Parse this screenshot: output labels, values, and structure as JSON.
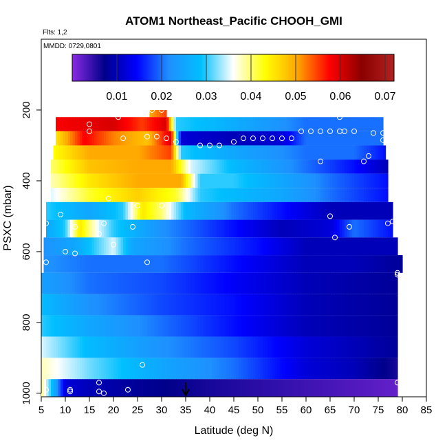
{
  "chart_data": {
    "type": "heatmap",
    "title": "ATOM1 Northeast_Pacific CHOOH_GMI",
    "subtitle_flights": "Flts: 1,2",
    "subtitle_dates": "MMDD: 0729,0801",
    "xlabel": "Latitude (deg N)",
    "ylabel": "PSXC (mbar)",
    "xlim": [
      5,
      85
    ],
    "ylim": [
      1010,
      0
    ],
    "x_ticks": [
      "5",
      "10",
      "15",
      "20",
      "25",
      "30",
      "35",
      "40",
      "45",
      "50",
      "55",
      "60",
      "65",
      "70",
      "75",
      "80",
      "85"
    ],
    "y_ticks": [
      "200",
      "400",
      "600",
      "800",
      "1000"
    ],
    "colorbar": {
      "range": [
        0.0,
        0.072
      ],
      "ticks": [
        "0.01",
        "0.02",
        "0.03",
        "0.04",
        "0.05",
        "0.06",
        "0.07"
      ],
      "tick_values": [
        0.01,
        0.02,
        0.03,
        0.04,
        0.05,
        0.06,
        0.07
      ],
      "colors": [
        "#8a2be2",
        "#00008b",
        "#0000ff",
        "#1e90ff",
        "#00bfff",
        "#ffffff",
        "#ffff00",
        "#ffa500",
        "#ff0000",
        "#8b0000",
        "#b22222"
      ]
    },
    "bands": [
      {
        "p_top": 200,
        "p_bottom": 220,
        "x_start": 27.5,
        "x_end": 31.0,
        "anchors": [
          [
            27.5,
            0.05
          ],
          [
            31.0,
            0.055
          ]
        ]
      },
      {
        "p_top": 220,
        "p_bottom": 260,
        "x_start": 8.0,
        "x_end": 76.0,
        "anchors": [
          [
            8.0,
            0.058
          ],
          [
            20.0,
            0.06
          ],
          [
            26.0,
            0.055
          ],
          [
            31.0,
            0.06
          ],
          [
            33.0,
            0.03
          ],
          [
            40.0,
            0.028
          ],
          [
            50.0,
            0.024
          ],
          [
            60.0,
            0.02
          ],
          [
            70.0,
            0.02
          ],
          [
            76.0,
            0.02
          ]
        ]
      },
      {
        "p_top": 260,
        "p_bottom": 300,
        "x_start": 8.0,
        "x_end": 76.0,
        "anchors": [
          [
            8.0,
            0.045
          ],
          [
            14.0,
            0.058
          ],
          [
            20.0,
            0.052
          ],
          [
            27.0,
            0.048
          ],
          [
            32.0,
            0.06
          ],
          [
            34.0,
            0.012
          ],
          [
            45.0,
            0.01
          ],
          [
            55.0,
            0.012
          ],
          [
            60.0,
            0.02
          ],
          [
            70.0,
            0.02
          ],
          [
            76.0,
            0.02
          ]
        ]
      },
      {
        "p_top": 300,
        "p_bottom": 340,
        "x_start": 7.5,
        "x_end": 76.5,
        "anchors": [
          [
            7.5,
            0.043
          ],
          [
            15.0,
            0.05
          ],
          [
            25.0,
            0.05
          ],
          [
            32.0,
            0.055
          ],
          [
            34.0,
            0.03
          ],
          [
            45.0,
            0.025
          ],
          [
            60.0,
            0.02
          ],
          [
            70.0,
            0.02
          ],
          [
            76.5,
            0.015
          ]
        ]
      },
      {
        "p_top": 340,
        "p_bottom": 380,
        "x_start": 7.0,
        "x_end": 77.0,
        "anchors": [
          [
            7.0,
            0.04
          ],
          [
            15.0,
            0.048
          ],
          [
            25.0,
            0.05
          ],
          [
            32.0,
            0.05
          ],
          [
            36.0,
            0.035
          ],
          [
            45.0,
            0.028
          ],
          [
            60.0,
            0.02
          ],
          [
            70.0,
            0.015
          ],
          [
            77.0,
            0.01
          ]
        ]
      },
      {
        "p_top": 380,
        "p_bottom": 420,
        "x_start": 7.0,
        "x_end": 77.0,
        "anchors": [
          [
            7.0,
            0.038
          ],
          [
            15.0,
            0.045
          ],
          [
            25.0,
            0.05
          ],
          [
            34.0,
            0.05
          ],
          [
            38.0,
            0.03
          ],
          [
            45.0,
            0.03
          ],
          [
            55.0,
            0.025
          ],
          [
            65.0,
            0.02
          ],
          [
            77.0,
            0.015
          ]
        ]
      },
      {
        "p_top": 420,
        "p_bottom": 460,
        "x_start": 7.0,
        "x_end": 77.0,
        "anchors": [
          [
            7.0,
            0.035
          ],
          [
            15.0,
            0.042
          ],
          [
            25.0,
            0.047
          ],
          [
            33.0,
            0.042
          ],
          [
            38.0,
            0.03
          ],
          [
            45.0,
            0.028
          ],
          [
            55.0,
            0.025
          ],
          [
            65.0,
            0.02
          ],
          [
            77.0,
            0.015
          ]
        ]
      },
      {
        "p_top": 460,
        "p_bottom": 510,
        "x_start": 6.0,
        "x_end": 78.0,
        "anchors": [
          [
            6.0,
            0.03
          ],
          [
            15.0,
            0.025
          ],
          [
            22.0,
            0.03
          ],
          [
            26.0,
            0.045
          ],
          [
            30.0,
            0.04
          ],
          [
            35.0,
            0.028
          ],
          [
            45.0,
            0.02
          ],
          [
            55.0,
            0.015
          ],
          [
            65.0,
            0.01
          ],
          [
            78.0,
            0.01
          ]
        ]
      },
      {
        "p_top": 510,
        "p_bottom": 560,
        "x_start": 6.0,
        "x_end": 78.0,
        "anchors": [
          [
            6.0,
            0.025
          ],
          [
            10.0,
            0.03
          ],
          [
            13.0,
            0.045
          ],
          [
            17.0,
            0.035
          ],
          [
            20.0,
            0.03
          ],
          [
            30.0,
            0.022
          ],
          [
            45.0,
            0.015
          ],
          [
            55.0,
            0.01
          ],
          [
            65.0,
            0.012
          ],
          [
            70.0,
            0.02
          ],
          [
            78.0,
            0.015
          ]
        ]
      },
      {
        "p_top": 560,
        "p_bottom": 610,
        "x_start": 5.5,
        "x_end": 79.0,
        "anchors": [
          [
            5.5,
            0.022
          ],
          [
            12.0,
            0.025
          ],
          [
            20.0,
            0.035
          ],
          [
            24.0,
            0.025
          ],
          [
            35.0,
            0.02
          ],
          [
            50.0,
            0.015
          ],
          [
            60.0,
            0.01
          ],
          [
            70.0,
            0.01
          ],
          [
            79.0,
            0.01
          ]
        ]
      },
      {
        "p_top": 610,
        "p_bottom": 660,
        "x_start": 5.5,
        "x_end": 80.0,
        "anchors": [
          [
            5.5,
            0.022
          ],
          [
            15.0,
            0.02
          ],
          [
            30.0,
            0.02
          ],
          [
            45.0,
            0.015
          ],
          [
            60.0,
            0.01
          ],
          [
            70.0,
            0.01
          ],
          [
            80.0,
            0.008
          ]
        ]
      },
      {
        "p_top": 660,
        "p_bottom": 720,
        "x_start": 5.0,
        "x_end": 79.0,
        "anchors": [
          [
            5.0,
            0.024
          ],
          [
            15.0,
            0.02
          ],
          [
            30.0,
            0.018
          ],
          [
            45.0,
            0.014
          ],
          [
            60.0,
            0.01
          ],
          [
            70.0,
            0.009
          ],
          [
            79.0,
            0.008
          ]
        ]
      },
      {
        "p_top": 720,
        "p_bottom": 780,
        "x_start": 5.0,
        "x_end": 79.0,
        "anchors": [
          [
            5.0,
            0.028
          ],
          [
            15.0,
            0.022
          ],
          [
            30.0,
            0.018
          ],
          [
            45.0,
            0.015
          ],
          [
            60.0,
            0.01
          ],
          [
            70.0,
            0.009
          ],
          [
            79.0,
            0.008
          ]
        ]
      },
      {
        "p_top": 780,
        "p_bottom": 840,
        "x_start": 5.0,
        "x_end": 79.0,
        "anchors": [
          [
            5.0,
            0.03
          ],
          [
            15.0,
            0.025
          ],
          [
            30.0,
            0.02
          ],
          [
            45.0,
            0.015
          ],
          [
            60.0,
            0.01
          ],
          [
            70.0,
            0.009
          ],
          [
            79.0,
            0.008
          ]
        ]
      },
      {
        "p_top": 840,
        "p_bottom": 900,
        "x_start": 5.0,
        "x_end": 79.0,
        "anchors": [
          [
            5.0,
            0.035
          ],
          [
            15.0,
            0.028
          ],
          [
            30.0,
            0.022
          ],
          [
            45.0,
            0.018
          ],
          [
            60.0,
            0.012
          ],
          [
            70.0,
            0.01
          ],
          [
            79.0,
            0.008
          ]
        ]
      },
      {
        "p_top": 900,
        "p_bottom": 960,
        "x_start": 5.0,
        "x_end": 79.0,
        "anchors": [
          [
            5.0,
            0.038
          ],
          [
            15.0,
            0.032
          ],
          [
            30.0,
            0.025
          ],
          [
            45.0,
            0.02
          ],
          [
            60.0,
            0.012
          ],
          [
            70.0,
            0.01
          ],
          [
            79.0,
            0.006
          ]
        ]
      },
      {
        "p_top": 960,
        "p_bottom": 1010,
        "x_start": 5.0,
        "x_end": 79.0,
        "anchors": [
          [
            5.0,
            0.04
          ],
          [
            7.0,
            0.03
          ],
          [
            10.0,
            0.012
          ],
          [
            15.0,
            0.01
          ],
          [
            25.0,
            0.008
          ],
          [
            40.0,
            0.006
          ],
          [
            60.0,
            0.004
          ],
          [
            70.0,
            0.003
          ],
          [
            79.0,
            0.002
          ]
        ]
      }
    ],
    "points": [
      [
        28,
        200
      ],
      [
        30,
        200
      ],
      [
        15,
        240
      ],
      [
        15,
        260
      ],
      [
        21,
        220
      ],
      [
        22,
        280
      ],
      [
        27,
        275
      ],
      [
        29,
        275
      ],
      [
        31,
        280
      ],
      [
        33,
        290
      ],
      [
        38,
        300
      ],
      [
        40,
        300
      ],
      [
        42,
        300
      ],
      [
        45,
        290
      ],
      [
        47,
        280
      ],
      [
        49,
        280
      ],
      [
        51,
        280
      ],
      [
        53,
        280
      ],
      [
        55,
        280
      ],
      [
        57,
        280
      ],
      [
        59,
        260
      ],
      [
        61,
        260
      ],
      [
        63,
        260
      ],
      [
        65,
        260
      ],
      [
        67,
        260
      ],
      [
        67,
        220
      ],
      [
        68,
        260
      ],
      [
        70,
        260
      ],
      [
        74,
        265
      ],
      [
        76,
        265
      ],
      [
        76,
        285
      ],
      [
        73,
        330
      ],
      [
        72,
        345
      ],
      [
        63,
        345
      ],
      [
        19,
        450
      ],
      [
        25,
        470
      ],
      [
        30,
        470
      ],
      [
        65,
        500
      ],
      [
        9,
        495
      ],
      [
        6,
        520
      ],
      [
        12,
        530
      ],
      [
        18,
        520
      ],
      [
        24,
        530
      ],
      [
        17,
        550
      ],
      [
        20,
        580
      ],
      [
        69,
        530
      ],
      [
        66,
        560
      ],
      [
        77,
        520
      ],
      [
        78,
        515
      ],
      [
        10,
        600
      ],
      [
        12,
        605
      ],
      [
        6,
        630
      ],
      [
        27,
        630
      ],
      [
        79,
        660
      ],
      [
        79,
        665
      ],
      [
        26,
        920
      ],
      [
        17,
        970
      ],
      [
        11,
        990
      ],
      [
        11,
        995
      ],
      [
        17,
        995
      ],
      [
        18,
        1000
      ],
      [
        23,
        990
      ],
      [
        6,
        990
      ],
      [
        79,
        970
      ]
    ],
    "arrow_x": 35
  }
}
